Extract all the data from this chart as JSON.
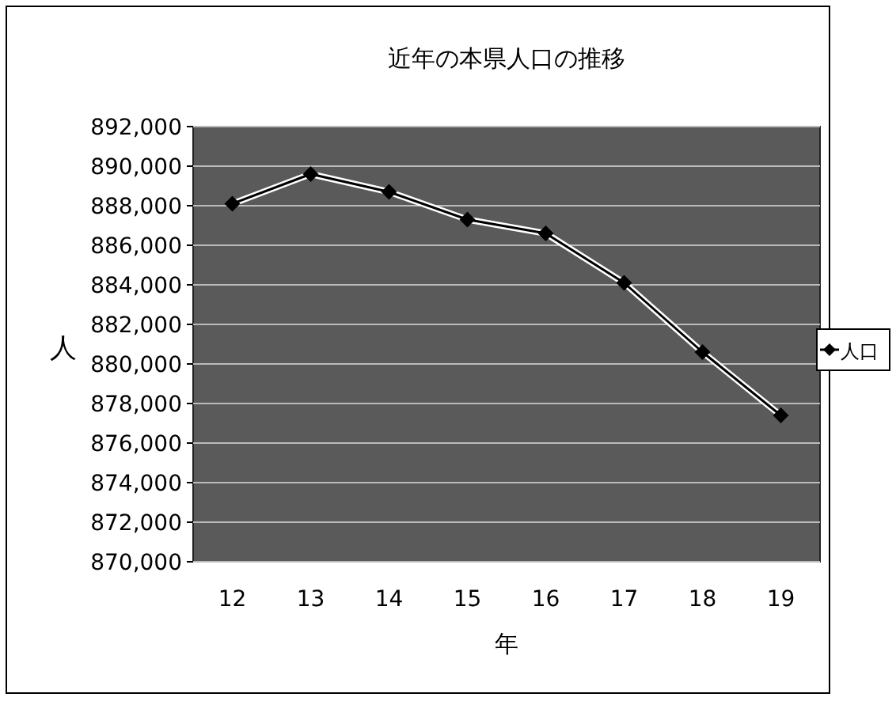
{
  "chart_data": {
    "type": "line",
    "title": "近年の本県人口の推移",
    "xlabel": "年",
    "ylabel": "人",
    "categories": [
      "12",
      "13",
      "14",
      "15",
      "16",
      "17",
      "18",
      "19"
    ],
    "series": [
      {
        "name": "人口",
        "color": "#000000",
        "values": [
          888100,
          889600,
          888700,
          887300,
          886600,
          884100,
          880600,
          877400
        ]
      }
    ],
    "ylim": [
      870000,
      892000
    ],
    "yticks": [
      {
        "value": 870000,
        "label": "870,000"
      },
      {
        "value": 872000,
        "label": "872,000"
      },
      {
        "value": 874000,
        "label": "874,000"
      },
      {
        "value": 876000,
        "label": "876,000"
      },
      {
        "value": 878000,
        "label": "878,000"
      },
      {
        "value": 880000,
        "label": "880,000"
      },
      {
        "value": 882000,
        "label": "882,000"
      },
      {
        "value": 884000,
        "label": "884,000"
      },
      {
        "value": 886000,
        "label": "886,000"
      },
      {
        "value": 888000,
        "label": "888,000"
      },
      {
        "value": 890000,
        "label": "890,000"
      },
      {
        "value": 892000,
        "label": "892,000"
      }
    ],
    "grid": "y",
    "legend": "right",
    "marker": "diamond",
    "line_style": "solid"
  }
}
